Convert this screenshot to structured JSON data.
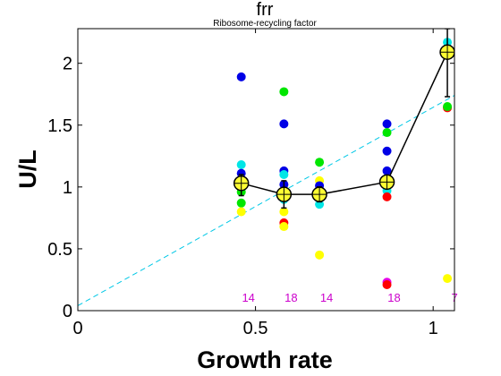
{
  "chart_data": {
    "type": "scatter",
    "title": "frr",
    "subtitle": "Ribosome-recycling factor",
    "xlabel": "Growth rate",
    "ylabel": "U/L",
    "xlim": [
      0,
      1.06
    ],
    "ylim": [
      0,
      2.28
    ],
    "xticks": [
      0,
      0.5,
      1
    ],
    "xtick_labels": [
      "0",
      "0.5",
      "1"
    ],
    "yticks": [
      0,
      0.5,
      1,
      1.5,
      2
    ],
    "ytick_labels": [
      "0",
      "0.5",
      "1",
      "1.5",
      "2"
    ],
    "grid": false,
    "trend_line": {
      "style": "dashed",
      "color": "#00c8e6",
      "x": [
        0,
        1.06
      ],
      "y": [
        0.04,
        1.74
      ]
    },
    "points": [
      {
        "x": 0.46,
        "y": 1.89,
        "color": "#0000e6"
      },
      {
        "x": 0.46,
        "y": 1.18,
        "color": "#00e6e6"
      },
      {
        "x": 0.46,
        "y": 1.11,
        "color": "#0000e6"
      },
      {
        "x": 0.46,
        "y": 1.06,
        "color": "#ffff00"
      },
      {
        "x": 0.46,
        "y": 1.0,
        "color": "#ff0000"
      },
      {
        "x": 0.46,
        "y": 0.96,
        "color": "#00e600"
      },
      {
        "x": 0.46,
        "y": 0.87,
        "color": "#00e600"
      },
      {
        "x": 0.46,
        "y": 0.8,
        "color": "#ffff00"
      },
      {
        "x": 0.58,
        "y": 1.77,
        "color": "#00e600"
      },
      {
        "x": 0.58,
        "y": 1.51,
        "color": "#0000e6"
      },
      {
        "x": 0.58,
        "y": 1.13,
        "color": "#0000e6"
      },
      {
        "x": 0.58,
        "y": 1.1,
        "color": "#00e6e6"
      },
      {
        "x": 0.58,
        "y": 1.02,
        "color": "#0000e6"
      },
      {
        "x": 0.58,
        "y": 0.9,
        "color": "#00e6e6"
      },
      {
        "x": 0.58,
        "y": 0.8,
        "color": "#ffff00"
      },
      {
        "x": 0.58,
        "y": 0.71,
        "color": "#ff0000"
      },
      {
        "x": 0.58,
        "y": 0.68,
        "color": "#ffff00"
      },
      {
        "x": 0.68,
        "y": 1.2,
        "color": "#00e600"
      },
      {
        "x": 0.68,
        "y": 1.05,
        "color": "#ffff00"
      },
      {
        "x": 0.68,
        "y": 1.01,
        "color": "#0000e6"
      },
      {
        "x": 0.68,
        "y": 0.95,
        "color": "#ffff00"
      },
      {
        "x": 0.68,
        "y": 0.91,
        "color": "#ff0000"
      },
      {
        "x": 0.68,
        "y": 0.86,
        "color": "#00e6e6"
      },
      {
        "x": 0.68,
        "y": 0.45,
        "color": "#ffff00"
      },
      {
        "x": 0.87,
        "y": 1.51,
        "color": "#0000e6"
      },
      {
        "x": 0.87,
        "y": 1.44,
        "color": "#00e600"
      },
      {
        "x": 0.87,
        "y": 1.29,
        "color": "#0000e6"
      },
      {
        "x": 0.87,
        "y": 1.13,
        "color": "#0000e6"
      },
      {
        "x": 0.87,
        "y": 1.05,
        "color": "#ffff00"
      },
      {
        "x": 0.87,
        "y": 0.97,
        "color": "#00e6e6"
      },
      {
        "x": 0.87,
        "y": 0.92,
        "color": "#ff0000"
      },
      {
        "x": 0.87,
        "y": 0.23,
        "color": "#e600e6"
      },
      {
        "x": 0.87,
        "y": 0.21,
        "color": "#ff0000"
      },
      {
        "x": 1.04,
        "y": 2.17,
        "color": "#00e6e6"
      },
      {
        "x": 1.04,
        "y": 1.64,
        "color": "#ff0000"
      },
      {
        "x": 1.04,
        "y": 1.65,
        "color": "#00e600"
      },
      {
        "x": 1.04,
        "y": 0.26,
        "color": "#ffff00"
      }
    ],
    "series": [
      {
        "x": [
          0.46,
          0.58,
          0.68,
          0.87,
          1.04
        ],
        "y": [
          1.03,
          0.94,
          0.94,
          1.04,
          2.09
        ],
        "err_low": [
          0.93,
          0.83,
          0.88,
          1.0,
          1.73
        ],
        "err_high": [
          1.1,
          1.05,
          1.0,
          1.09,
          2.28
        ],
        "color": "#000000",
        "marker_fill": "#ffff33"
      }
    ],
    "annotations": [
      {
        "x": 0.46,
        "text": "14"
      },
      {
        "x": 0.58,
        "text": "18"
      },
      {
        "x": 0.68,
        "text": "14"
      },
      {
        "x": 0.87,
        "text": "18"
      },
      {
        "x": 1.04,
        "text": "7"
      }
    ],
    "annotation_color": "#cc00cc"
  }
}
